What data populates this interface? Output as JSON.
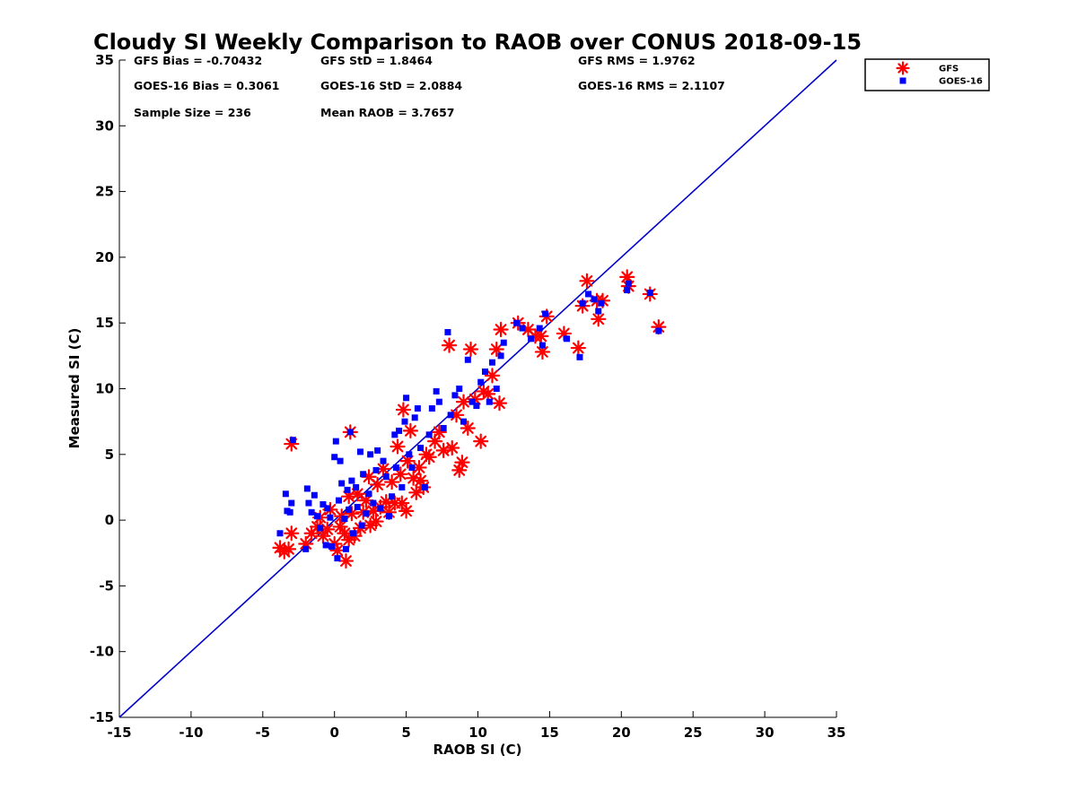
{
  "chart_data": {
    "type": "scatter",
    "title": "Cloudy SI Weekly Comparison to RAOB over CONUS 2018-09-15",
    "xlabel": "RAOB SI (C)",
    "ylabel": "Measured SI (C)",
    "xlim": [
      -15,
      35
    ],
    "ylim": [
      -15,
      35
    ],
    "x_ticks": [
      -15,
      -10,
      -5,
      0,
      5,
      10,
      15,
      20,
      25,
      30,
      35
    ],
    "y_ticks": [
      -15,
      -10,
      -5,
      0,
      5,
      10,
      15,
      20,
      25,
      30,
      35
    ],
    "grid": false,
    "legend_position": "top-right-outside",
    "reference_line": {
      "from": [
        -15,
        -15
      ],
      "to": [
        35,
        35
      ],
      "color": "#0000cc"
    },
    "stats": [
      [
        "GFS Bias = -0.70432",
        "GFS StD = 1.8464",
        "GFS RMS = 1.9762"
      ],
      [
        "GOES-16 Bias = 0.3061",
        "GOES-16 StD = 2.0884",
        "GOES-16 RMS = 2.1107"
      ],
      [
        "Sample Size = 236",
        "Mean RAOB = 3.7657",
        ""
      ]
    ],
    "series": [
      {
        "name": "GFS",
        "marker": "asterisk",
        "color": "#ff0000",
        "points": [
          [
            -3.8,
            -2.1
          ],
          [
            -3.5,
            -2.4
          ],
          [
            -3.2,
            -2.2
          ],
          [
            -3.0,
            -1.0
          ],
          [
            -3.0,
            5.8
          ],
          [
            -2.0,
            -1.8
          ],
          [
            -1.6,
            -1.0
          ],
          [
            -1.2,
            -0.5
          ],
          [
            -1.0,
            0.2
          ],
          [
            -0.8,
            -1.2
          ],
          [
            -0.5,
            -0.7
          ],
          [
            -0.3,
            0.8
          ],
          [
            0.0,
            -1.8
          ],
          [
            0.2,
            -2.3
          ],
          [
            0.4,
            -0.5
          ],
          [
            0.5,
            0.3
          ],
          [
            0.7,
            -1.0
          ],
          [
            0.8,
            -3.1
          ],
          [
            1.0,
            -1.5
          ],
          [
            1.0,
            1.8
          ],
          [
            1.1,
            6.7
          ],
          [
            1.2,
            0.5
          ],
          [
            1.4,
            -1.2
          ],
          [
            1.6,
            2.0
          ],
          [
            1.8,
            -0.6
          ],
          [
            2.0,
            0.6
          ],
          [
            2.2,
            1.5
          ],
          [
            2.4,
            3.3
          ],
          [
            2.5,
            -0.4
          ],
          [
            2.7,
            0.7
          ],
          [
            2.9,
            -0.1
          ],
          [
            3.0,
            2.7
          ],
          [
            3.2,
            1.0
          ],
          [
            3.4,
            3.9
          ],
          [
            3.6,
            1.4
          ],
          [
            3.8,
            0.6
          ],
          [
            4.0,
            2.9
          ],
          [
            4.2,
            1.3
          ],
          [
            4.4,
            5.6
          ],
          [
            4.6,
            3.5
          ],
          [
            4.7,
            1.3
          ],
          [
            4.8,
            8.4
          ],
          [
            5.0,
            0.7
          ],
          [
            5.1,
            4.5
          ],
          [
            5.3,
            6.8
          ],
          [
            5.5,
            3.2
          ],
          [
            5.7,
            2.1
          ],
          [
            5.9,
            4.0
          ],
          [
            6.0,
            3.0
          ],
          [
            6.2,
            2.5
          ],
          [
            6.4,
            5.0
          ],
          [
            6.6,
            4.8
          ],
          [
            7.0,
            6.0
          ],
          [
            7.3,
            6.7
          ],
          [
            7.6,
            5.3
          ],
          [
            8.0,
            13.3
          ],
          [
            8.2,
            5.5
          ],
          [
            8.5,
            8.0
          ],
          [
            8.7,
            3.8
          ],
          [
            8.9,
            4.4
          ],
          [
            9.0,
            9.0
          ],
          [
            9.3,
            7.0
          ],
          [
            9.5,
            13.0
          ],
          [
            9.8,
            9.2
          ],
          [
            10.2,
            6.0
          ],
          [
            10.4,
            9.8
          ],
          [
            10.7,
            9.6
          ],
          [
            11.0,
            11.0
          ],
          [
            11.3,
            13.0
          ],
          [
            11.5,
            8.9
          ],
          [
            11.6,
            14.5
          ],
          [
            12.8,
            15.0
          ],
          [
            13.5,
            14.5
          ],
          [
            14.0,
            14.0
          ],
          [
            14.4,
            14.0
          ],
          [
            14.5,
            12.8
          ],
          [
            14.8,
            15.5
          ],
          [
            16.0,
            14.2
          ],
          [
            17.0,
            13.1
          ],
          [
            17.3,
            16.3
          ],
          [
            17.6,
            18.2
          ],
          [
            18.3,
            16.7
          ],
          [
            18.4,
            15.3
          ],
          [
            18.7,
            16.7
          ],
          [
            20.4,
            18.5
          ],
          [
            20.5,
            17.8
          ],
          [
            22.0,
            17.2
          ],
          [
            22.6,
            14.7
          ]
        ]
      },
      {
        "name": "GOES-16",
        "marker": "square",
        "color": "#0000ff",
        "points": [
          [
            -3.8,
            -1.0
          ],
          [
            -3.4,
            2.0
          ],
          [
            -3.3,
            0.7
          ],
          [
            -3.1,
            0.6
          ],
          [
            -3.0,
            1.3
          ],
          [
            -2.9,
            6.1
          ],
          [
            -2.0,
            -2.2
          ],
          [
            -1.9,
            2.4
          ],
          [
            -1.8,
            1.3
          ],
          [
            -1.6,
            0.6
          ],
          [
            -1.4,
            1.9
          ],
          [
            -1.2,
            0.3
          ],
          [
            -1.0,
            -0.6
          ],
          [
            -0.8,
            1.2
          ],
          [
            -0.6,
            -1.9
          ],
          [
            -0.5,
            0.9
          ],
          [
            -0.3,
            0.2
          ],
          [
            -0.2,
            -2.0
          ],
          [
            0.0,
            4.8
          ],
          [
            0.1,
            6.0
          ],
          [
            0.2,
            -2.9
          ],
          [
            0.3,
            1.5
          ],
          [
            0.4,
            4.5
          ],
          [
            0.5,
            2.8
          ],
          [
            0.7,
            0.1
          ],
          [
            0.8,
            -2.2
          ],
          [
            0.9,
            2.3
          ],
          [
            1.0,
            0.8
          ],
          [
            1.1,
            6.7
          ],
          [
            1.2,
            3.0
          ],
          [
            1.3,
            -1.0
          ],
          [
            1.5,
            2.5
          ],
          [
            1.6,
            1.0
          ],
          [
            1.8,
            5.2
          ],
          [
            1.9,
            -0.4
          ],
          [
            2.0,
            3.5
          ],
          [
            2.2,
            0.5
          ],
          [
            2.4,
            2.0
          ],
          [
            2.5,
            5.0
          ],
          [
            2.7,
            1.3
          ],
          [
            2.9,
            3.8
          ],
          [
            3.0,
            5.3
          ],
          [
            3.2,
            0.9
          ],
          [
            3.4,
            4.5
          ],
          [
            3.6,
            3.3
          ],
          [
            3.8,
            0.3
          ],
          [
            4.0,
            1.8
          ],
          [
            4.2,
            6.5
          ],
          [
            4.3,
            4.0
          ],
          [
            4.5,
            6.8
          ],
          [
            4.7,
            2.5
          ],
          [
            4.9,
            7.5
          ],
          [
            5.0,
            9.3
          ],
          [
            5.2,
            5.0
          ],
          [
            5.4,
            4.0
          ],
          [
            5.6,
            7.8
          ],
          [
            5.8,
            8.5
          ],
          [
            6.0,
            5.5
          ],
          [
            6.3,
            2.5
          ],
          [
            6.6,
            6.5
          ],
          [
            6.8,
            8.5
          ],
          [
            7.1,
            9.8
          ],
          [
            7.3,
            9.0
          ],
          [
            7.6,
            7.0
          ],
          [
            7.9,
            14.3
          ],
          [
            8.1,
            8.0
          ],
          [
            8.4,
            9.5
          ],
          [
            8.7,
            10.0
          ],
          [
            9.0,
            7.5
          ],
          [
            9.3,
            12.2
          ],
          [
            9.6,
            9.0
          ],
          [
            9.9,
            8.7
          ],
          [
            10.2,
            10.5
          ],
          [
            10.5,
            11.3
          ],
          [
            10.8,
            9.0
          ],
          [
            11.0,
            12.0
          ],
          [
            11.3,
            10.0
          ],
          [
            11.6,
            12.5
          ],
          [
            11.8,
            13.5
          ],
          [
            12.7,
            15.0
          ],
          [
            13.1,
            14.6
          ],
          [
            13.7,
            13.8
          ],
          [
            14.3,
            14.6
          ],
          [
            14.5,
            13.3
          ],
          [
            14.7,
            15.7
          ],
          [
            16.2,
            13.8
          ],
          [
            17.1,
            12.4
          ],
          [
            17.3,
            16.5
          ],
          [
            17.7,
            17.2
          ],
          [
            18.1,
            16.8
          ],
          [
            18.4,
            15.9
          ],
          [
            18.6,
            16.5
          ],
          [
            20.4,
            17.5
          ],
          [
            20.5,
            18.0
          ],
          [
            22.0,
            17.3
          ],
          [
            22.6,
            14.4
          ]
        ]
      }
    ]
  }
}
